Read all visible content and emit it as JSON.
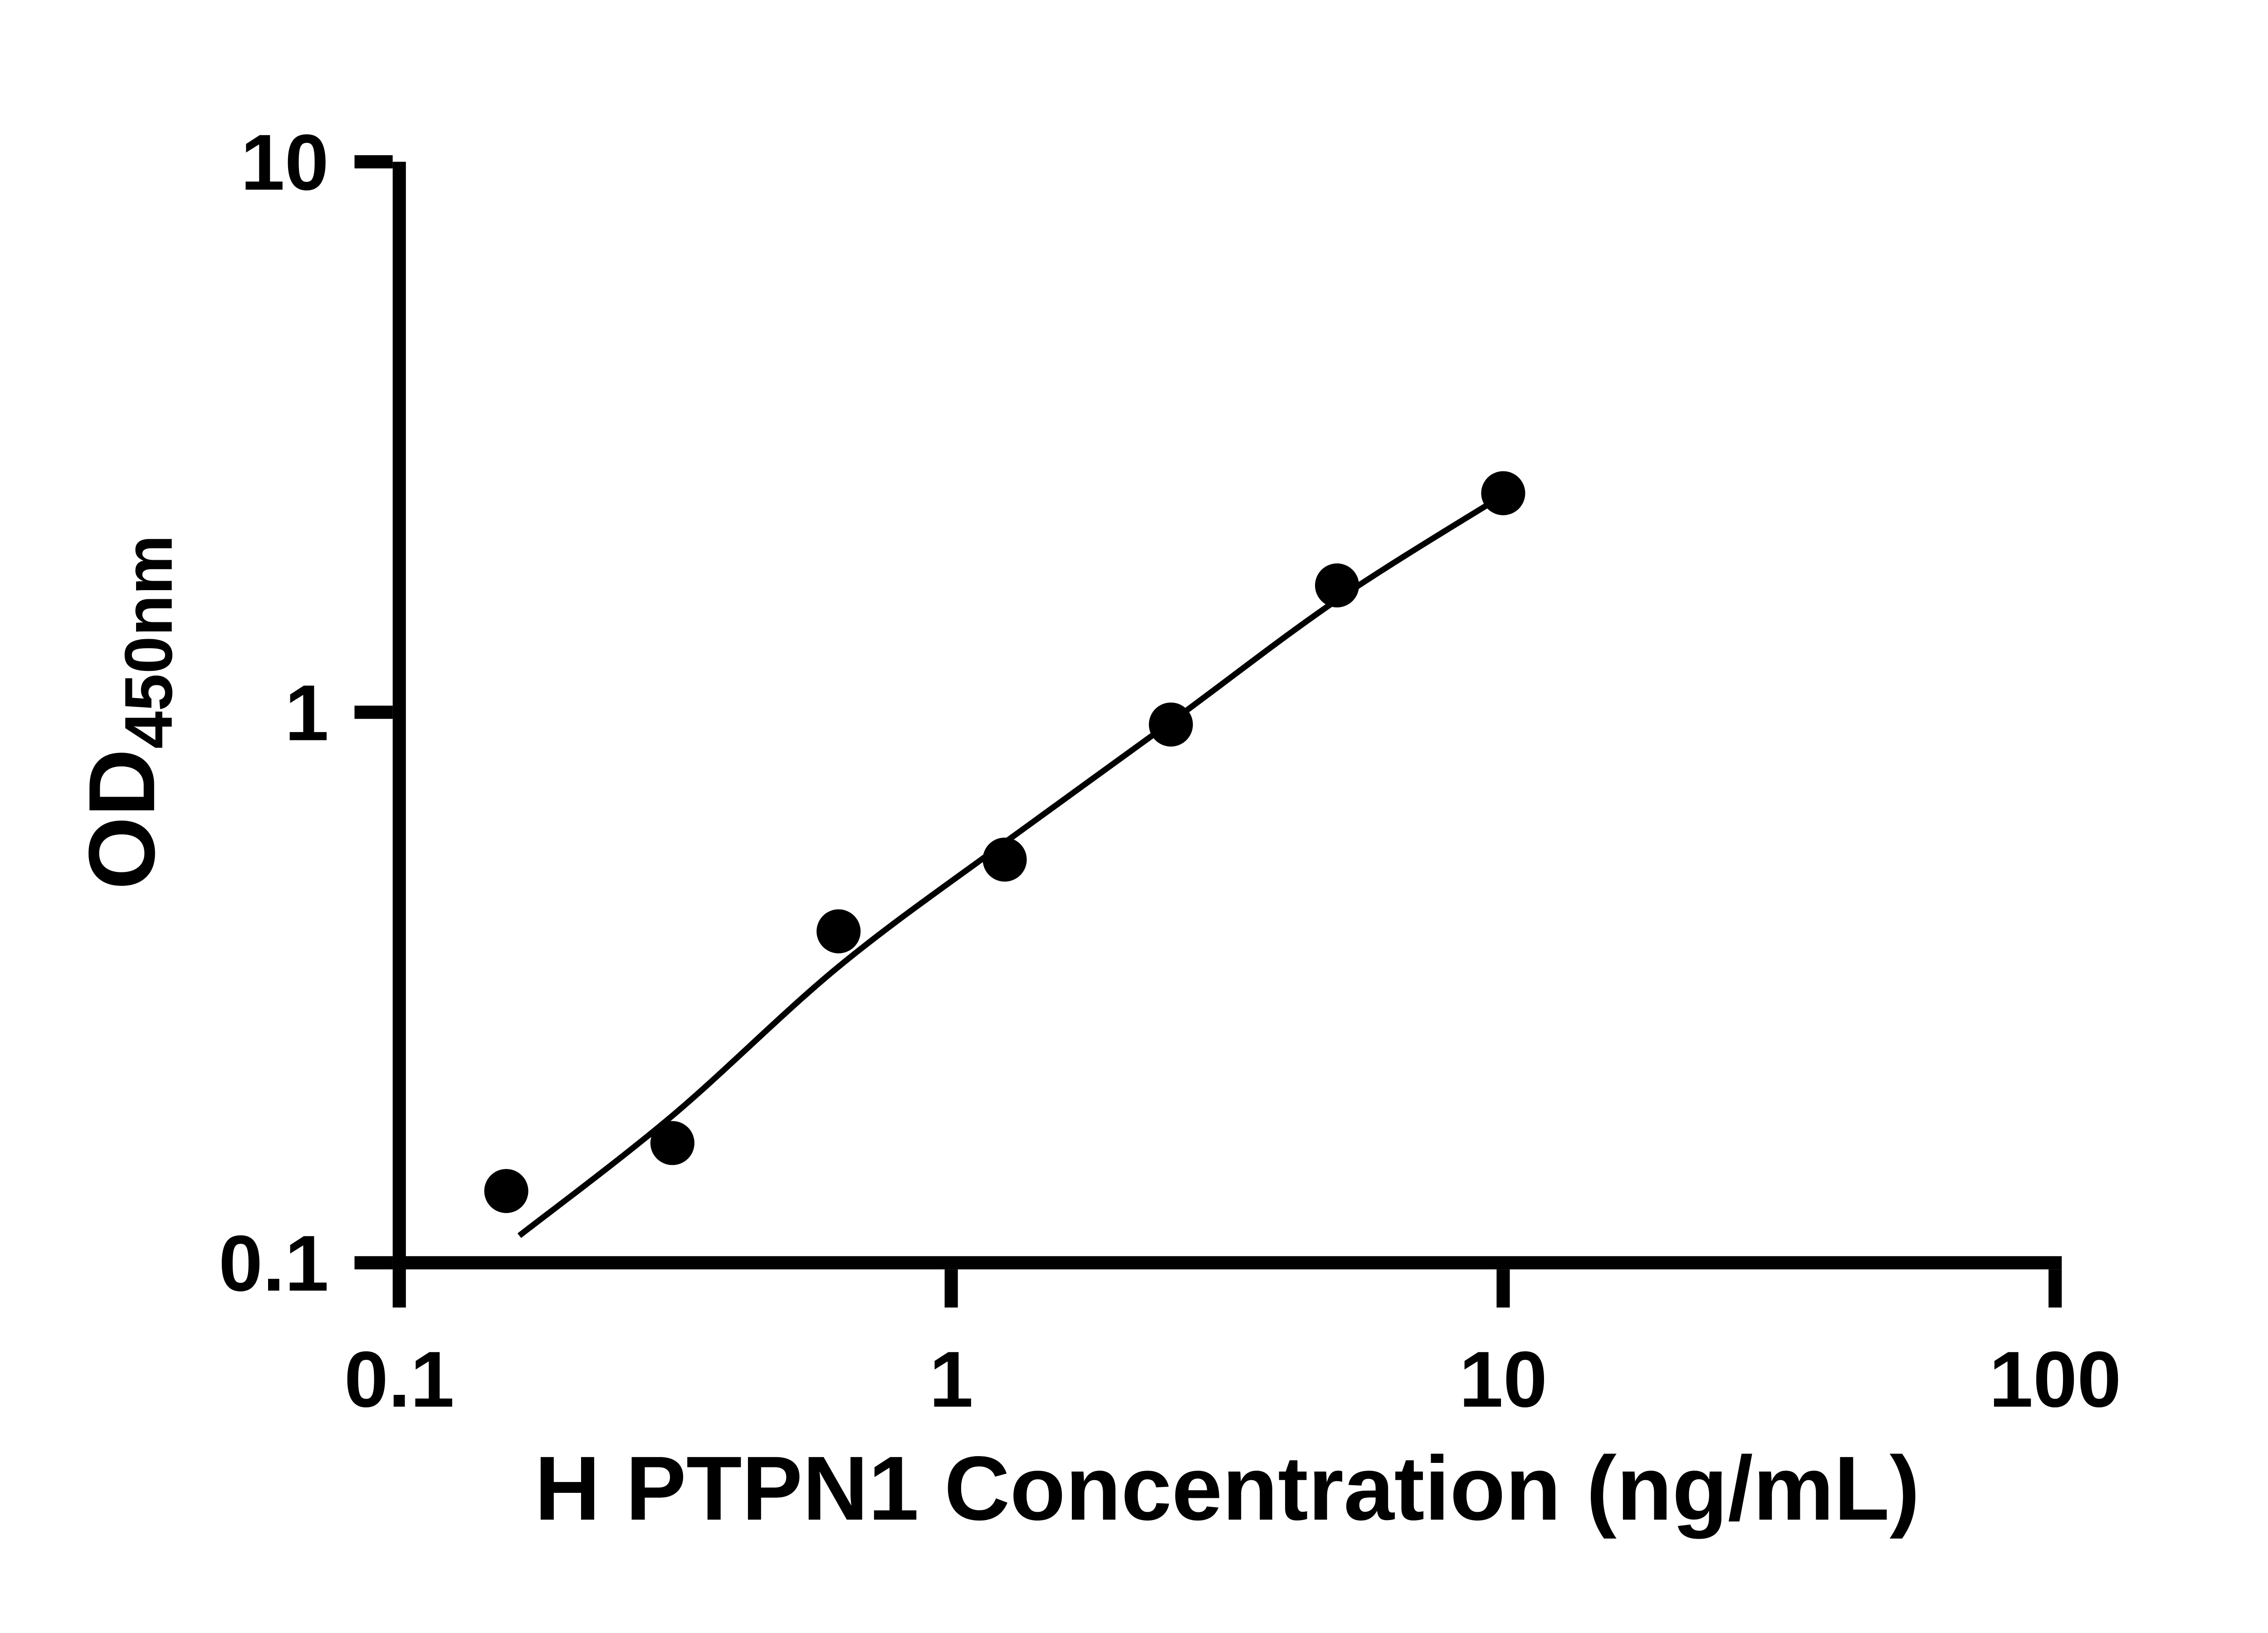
{
  "chart_data": {
    "type": "scatter",
    "title": "",
    "xlabel": "H PTPN1 Concentration (ng/mL)",
    "ylabel_main": "OD",
    "ylabel_sub": "450nm",
    "x_scale": "log",
    "y_scale": "log",
    "xlim": [
      0.1,
      100
    ],
    "ylim": [
      0.1,
      10
    ],
    "x_ticks": [
      0.1,
      1,
      10,
      100
    ],
    "x_tick_labels": [
      "0.1",
      "1",
      "10",
      "100"
    ],
    "y_ticks": [
      0.1,
      1,
      10
    ],
    "y_tick_labels": [
      "0.1",
      "1",
      "10"
    ],
    "grid": "off",
    "legend": "none",
    "series": [
      {
        "name": "standard-curve-points",
        "x": [
          0.15625,
          0.3125,
          0.625,
          1.25,
          2.5,
          5,
          10
        ],
        "y": [
          0.135,
          0.165,
          0.4,
          0.54,
          0.95,
          1.7,
          2.5
        ]
      }
    ],
    "trend_line": {
      "name": "fitted-curve",
      "x": [
        0.165,
        0.3125,
        0.625,
        1.25,
        2.5,
        5,
        10
      ],
      "y": [
        0.112,
        0.185,
        0.345,
        0.58,
        0.96,
        1.6,
        2.48
      ]
    },
    "colors": {
      "points": "#000000",
      "line": "#000000",
      "axis": "#000000",
      "background": "#ffffff"
    }
  }
}
